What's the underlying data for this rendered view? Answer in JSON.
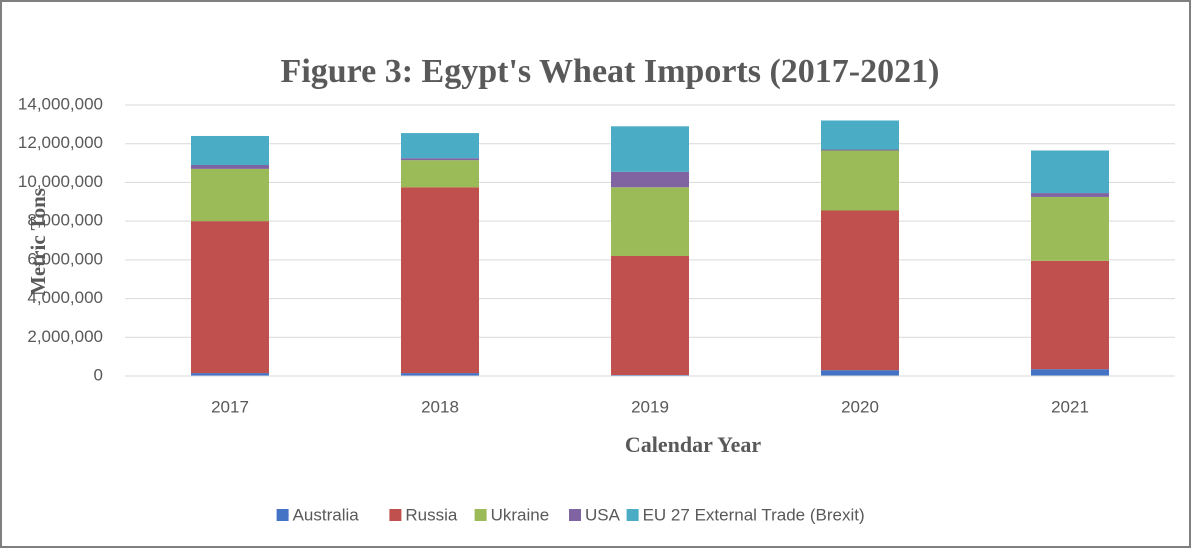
{
  "chart_data": {
    "type": "stacked_bar",
    "title": "Figure 3: Egypt's Wheat Imports  (2017-2021)",
    "x_label": "Calendar Year",
    "y_label": "Metric Tons",
    "categories": [
      "2017",
      "2018",
      "2019",
      "2020",
      "2021"
    ],
    "series": [
      {
        "name": "Australia",
        "color": "#4472c4",
        "values": [
          150000,
          150000,
          50000,
          300000,
          350000
        ]
      },
      {
        "name": "Russia",
        "color": "#c0504d",
        "values": [
          7850000,
          9600000,
          6150000,
          8250000,
          5600000
        ]
      },
      {
        "name": "Ukraine",
        "color": "#9bbb59",
        "values": [
          2700000,
          1400000,
          3550000,
          3100000,
          3300000
        ]
      },
      {
        "name": "USA",
        "color": "#8064a2",
        "values": [
          200000,
          100000,
          800000,
          50000,
          200000
        ]
      },
      {
        "name": "EU 27 External Trade (Brexit)",
        "color": "#4bacc6",
        "values": [
          1500000,
          1300000,
          2350000,
          1500000,
          2200000
        ]
      }
    ],
    "ylim": [
      0,
      14000000
    ],
    "yticks": [
      0,
      {
        "value": 2000000,
        "label": "2,000,000"
      },
      {
        "value": 4000000,
        "label": "4,000,000"
      },
      {
        "value": 6000000,
        "label": "6,000,000"
      },
      {
        "value": 8000000,
        "label": "8,000,000"
      },
      {
        "value": 10000000,
        "label": "10,000,000"
      },
      {
        "value": 12000000,
        "label": "12,000,000"
      },
      {
        "value": 14000000,
        "label": "14,000,000"
      }
    ],
    "grid": true,
    "legend": "bottom"
  }
}
